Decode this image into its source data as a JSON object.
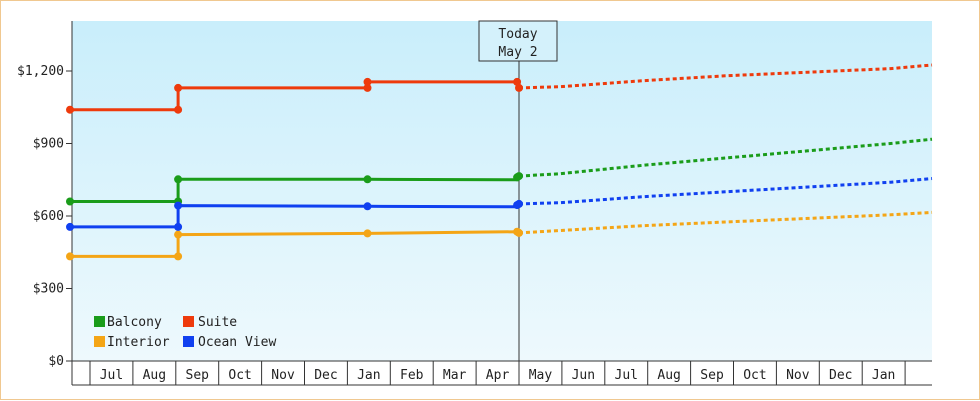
{
  "chart_data": {
    "type": "line",
    "title": "",
    "xlabel": "",
    "ylabel": "",
    "y_ticks": [
      "$0",
      "$300",
      "$600",
      "$900",
      "$1,200"
    ],
    "y_tick_values": [
      0,
      300,
      600,
      900,
      1200
    ],
    "ylim": [
      0,
      1200
    ],
    "x_month_labels": [
      "Jul",
      "Aug",
      "Sep",
      "Oct",
      "Nov",
      "Dec",
      "Jan",
      "Feb",
      "Mar",
      "Apr",
      "May",
      "Jun",
      "Jul",
      "Aug",
      "Sep",
      "Oct",
      "Nov",
      "Dec",
      "Jan"
    ],
    "today_marker": {
      "line1": "Today",
      "line2": "May 2",
      "index": 10.0
    },
    "legend": {
      "position": "bottom-left"
    },
    "background_gradient": [
      "#c9eefb",
      "#eef9fd"
    ],
    "colors": {
      "Balcony": "#1a9c1a",
      "Suite": "#ee3a0c",
      "Interior": "#f4a516",
      "Ocean View": "#1040f0",
      "axis": "#333333",
      "today_box_bg": "#d4f1fb"
    },
    "series": [
      {
        "name": "Balcony",
        "actual": [
          [
            -0.5,
            660
          ],
          [
            1.0,
            660
          ],
          [
            1.0,
            752
          ],
          [
            6.0,
            752
          ],
          [
            10.0,
            750
          ]
        ],
        "markers": [
          [
            -0.5,
            660
          ],
          [
            1.0,
            660
          ],
          [
            1.0,
            752
          ],
          [
            6.0,
            752
          ],
          [
            9.95,
            760
          ],
          [
            10.0,
            765
          ]
        ],
        "forecast": [
          [
            10.0,
            765
          ],
          [
            11.0,
            775
          ],
          [
            13.0,
            810
          ],
          [
            15.0,
            840
          ],
          [
            17.0,
            870
          ],
          [
            19.0,
            900
          ],
          [
            20.0,
            918
          ]
        ]
      },
      {
        "name": "Suite",
        "actual": [
          [
            -0.5,
            1040
          ],
          [
            1.0,
            1040
          ],
          [
            1.0,
            1130
          ],
          [
            6.0,
            1130
          ],
          [
            6.0,
            1155
          ],
          [
            10.0,
            1155
          ]
        ],
        "markers": [
          [
            -0.5,
            1040
          ],
          [
            1.0,
            1040
          ],
          [
            1.0,
            1130
          ],
          [
            6.0,
            1130
          ],
          [
            6.0,
            1155
          ],
          [
            9.95,
            1155
          ],
          [
            10.0,
            1130
          ]
        ],
        "forecast": [
          [
            10.0,
            1130
          ],
          [
            11.0,
            1135
          ],
          [
            13.0,
            1160
          ],
          [
            15.0,
            1180
          ],
          [
            17.0,
            1195
          ],
          [
            19.0,
            1210
          ],
          [
            20.0,
            1225
          ]
        ]
      },
      {
        "name": "Interior",
        "actual": [
          [
            -0.5,
            433
          ],
          [
            1.0,
            433
          ],
          [
            1.0,
            523
          ],
          [
            6.0,
            528
          ],
          [
            10.0,
            535
          ]
        ],
        "markers": [
          [
            -0.5,
            433
          ],
          [
            1.0,
            433
          ],
          [
            1.0,
            523
          ],
          [
            6.0,
            528
          ],
          [
            9.95,
            535
          ],
          [
            10.0,
            530
          ]
        ],
        "forecast": [
          [
            10.0,
            530
          ],
          [
            11.0,
            540
          ],
          [
            13.0,
            560
          ],
          [
            15.0,
            575
          ],
          [
            17.0,
            590
          ],
          [
            19.0,
            605
          ],
          [
            20.0,
            615
          ]
        ]
      },
      {
        "name": "Ocean View",
        "actual": [
          [
            -0.5,
            555
          ],
          [
            1.0,
            555
          ],
          [
            1.0,
            643
          ],
          [
            6.0,
            640
          ],
          [
            10.0,
            638
          ]
        ],
        "markers": [
          [
            -0.5,
            555
          ],
          [
            1.0,
            555
          ],
          [
            1.0,
            643
          ],
          [
            6.0,
            640
          ],
          [
            9.95,
            645
          ],
          [
            10.0,
            650
          ]
        ],
        "forecast": [
          [
            10.0,
            650
          ],
          [
            11.0,
            655
          ],
          [
            13.0,
            680
          ],
          [
            15.0,
            700
          ],
          [
            17.0,
            720
          ],
          [
            19.0,
            740
          ],
          [
            20.0,
            755
          ]
        ]
      }
    ],
    "legend_order": [
      "Balcony",
      "Suite",
      "Interior",
      "Ocean View"
    ]
  }
}
